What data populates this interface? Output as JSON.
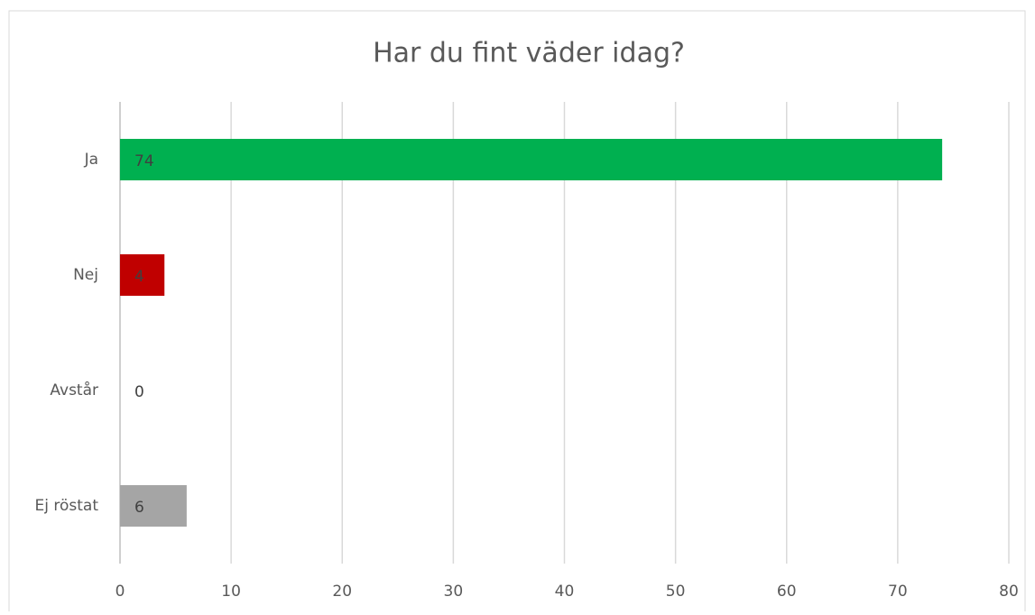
{
  "chart_data": {
    "type": "bar",
    "orientation": "horizontal",
    "title": "Har du fint väder idag?",
    "categories": [
      "Ja",
      "Nej",
      "Avstår",
      "Ej röstat"
    ],
    "values": [
      74,
      4,
      0,
      6
    ],
    "colors": [
      "#00b050",
      "#c00000",
      "#a5a5a5",
      "#a5a5a5"
    ],
    "xlim": [
      0,
      80
    ],
    "xticks": [
      0,
      10,
      20,
      30,
      40,
      50,
      60,
      70,
      80
    ],
    "grid": true
  }
}
